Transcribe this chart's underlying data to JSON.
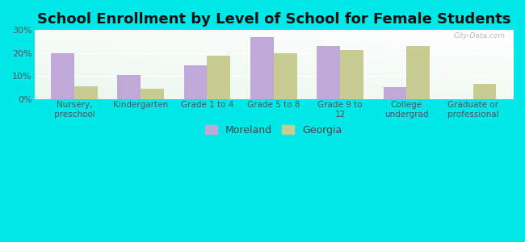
{
  "title": "School Enrollment by Level of School for Female Students",
  "categories": [
    "Nursery,\npreschool",
    "Kindergarten",
    "Grade 1 to 4",
    "Grade 5 to 8",
    "Grade 9 to\n12",
    "College\nundergrad",
    "Graduate or\nprofessional"
  ],
  "moreland": [
    20,
    10.5,
    14.5,
    27,
    23,
    5,
    0
  ],
  "georgia": [
    5.5,
    4.5,
    19,
    20,
    21.5,
    23,
    6.5
  ],
  "moreland_color": "#c0a8d8",
  "georgia_color": "#c8cc90",
  "bar_width": 0.35,
  "ylim": [
    0,
    30
  ],
  "yticks": [
    0,
    10,
    20,
    30
  ],
  "ytick_labels": [
    "0%",
    "10%",
    "20%",
    "30%"
  ],
  "background_color": "#00e8e8",
  "grad_top_color": "#e8faf0",
  "grad_bottom_color": "#c8ecd8",
  "grad_right_color": "#f5fffc",
  "title_fontsize": 13,
  "tick_fontsize": 7.5,
  "legend_labels": [
    "Moreland",
    "Georgia"
  ],
  "watermark": "City-Data.com"
}
